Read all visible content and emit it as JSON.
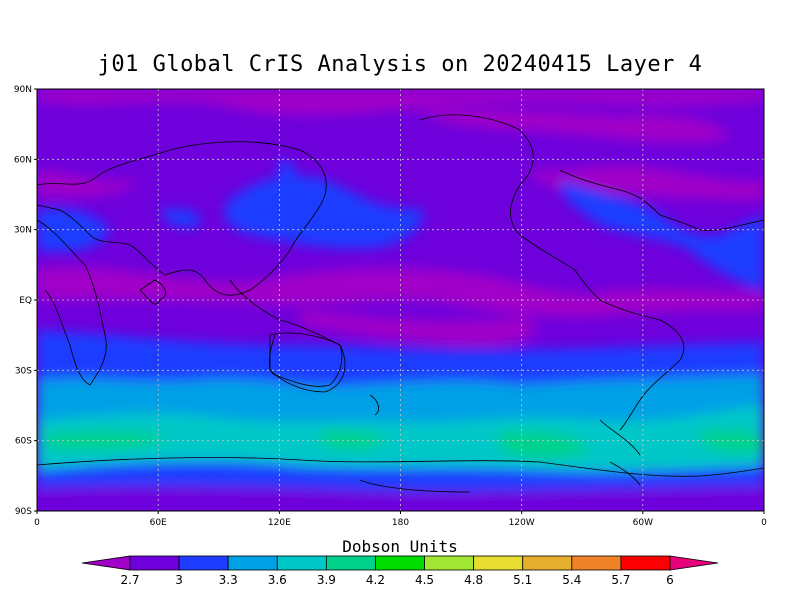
{
  "title": "j01 Global CrIS Analysis on 20240415 Layer 4",
  "map": {
    "projection": "cylindrical equidistant",
    "lon_range": [
      0,
      360
    ],
    "lat_range": [
      -90,
      90
    ],
    "lat_ticks": [
      {
        "value": 90,
        "label": "90N"
      },
      {
        "value": 60,
        "label": "60N"
      },
      {
        "value": 30,
        "label": "30N"
      },
      {
        "value": 0,
        "label": "EQ"
      },
      {
        "value": -30,
        "label": "30S"
      },
      {
        "value": -60,
        "label": "60S"
      },
      {
        "value": -90,
        "label": "90S"
      }
    ],
    "lon_ticks": [
      {
        "value": 0,
        "label": "0"
      },
      {
        "value": 60,
        "label": "60E"
      },
      {
        "value": 120,
        "label": "120E"
      },
      {
        "value": 180,
        "label": "180"
      },
      {
        "value": 240,
        "label": "120W"
      },
      {
        "value": 300,
        "label": "60W"
      },
      {
        "value": 360,
        "label": "0"
      }
    ],
    "grid": true,
    "coastlines": true
  },
  "colorbar": {
    "title": "Dobson Units",
    "levels": [
      "2.7",
      "3",
      "3.3",
      "3.6",
      "3.9",
      "4.2",
      "4.5",
      "4.8",
      "5.1",
      "5.4",
      "5.7",
      "6"
    ],
    "colors": [
      "#a000c8",
      "#6e00dc",
      "#1e3cff",
      "#00a0e6",
      "#00c8c8",
      "#00d28c",
      "#00dc00",
      "#a0e632",
      "#e6dc32",
      "#e6af2d",
      "#f08228",
      "#fa0000",
      "#e6007a"
    ]
  },
  "chart_data": {
    "type": "heatmap",
    "title": "j01 Global CrIS Analysis on 20240415 Layer 4",
    "units": "Dobson Units",
    "zonal_pattern": [
      {
        "lat": 80,
        "value": 2.6
      },
      {
        "lat": 60,
        "value": 2.8
      },
      {
        "lat": 30,
        "value": 3.0
      },
      {
        "lat": 0,
        "value": 2.7
      },
      {
        "lat": -30,
        "value": 3.1
      },
      {
        "lat": -50,
        "value": 3.6
      },
      {
        "lat": -60,
        "value": 3.9
      },
      {
        "lat": -75,
        "value": 3.3
      },
      {
        "lat": -85,
        "value": 2.9
      }
    ]
  }
}
